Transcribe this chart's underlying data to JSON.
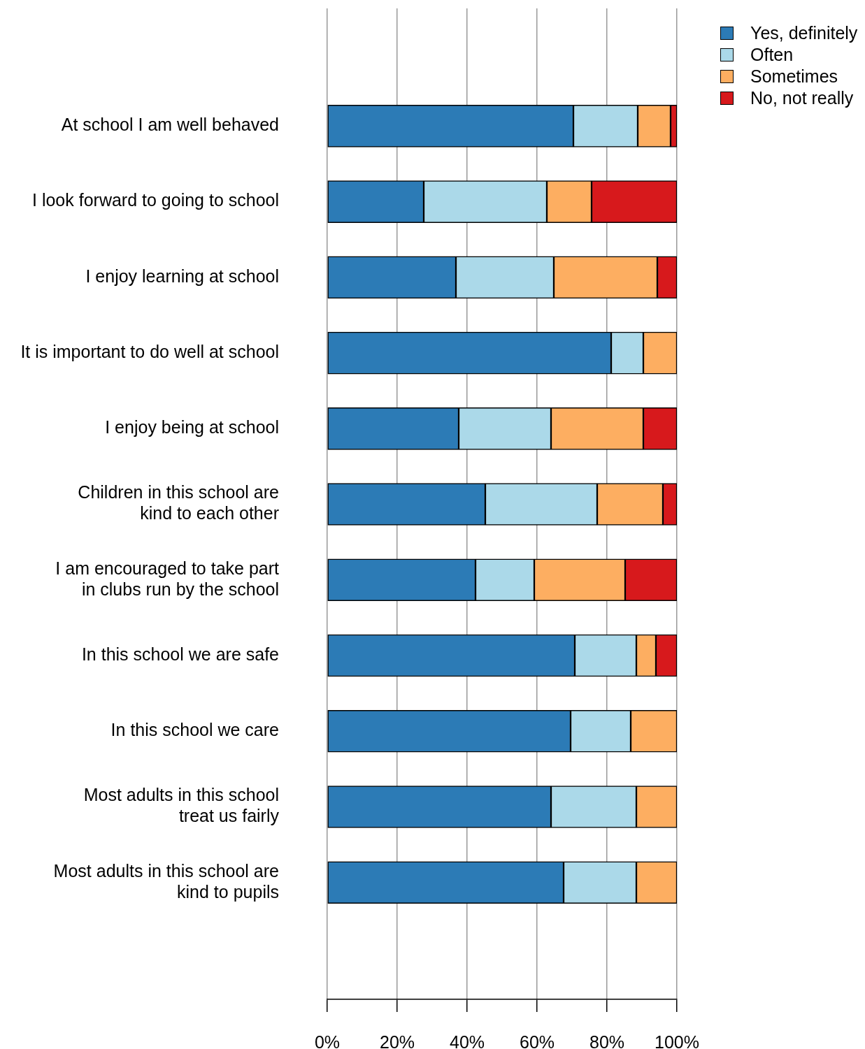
{
  "chart_data": {
    "type": "bar",
    "orientation": "horizontal",
    "stacked": true,
    "categories": [
      "At school I am well behaved",
      "I look forward to going to school",
      "I enjoy learning at school",
      "It is important to do well at school",
      "I enjoy being at school",
      "Children in this school are\nkind to each other",
      "I am encouraged to take part\nin clubs run by the school",
      "In this school we are safe",
      "In this school we care",
      "Most adults in this school\ntreat us fairly",
      "Most adults in this school are\nkind to pupils"
    ],
    "series": [
      {
        "name": "Yes, definitely",
        "color": "#2c7bb6",
        "values": [
          70.4,
          27.6,
          36.8,
          81.2,
          37.6,
          45.2,
          42.4,
          70.8,
          69.6,
          64,
          67.6
        ]
      },
      {
        "name": "Often",
        "color": "#abd9e9",
        "values": [
          18.4,
          35.2,
          28,
          9.2,
          26.4,
          32,
          16.8,
          17.6,
          17.2,
          24.4,
          20.8
        ]
      },
      {
        "name": "Sometimes",
        "color": "#fdae61",
        "values": [
          9.4,
          12.8,
          29.6,
          9.6,
          26.4,
          18.8,
          26,
          5.6,
          13.2,
          11.6,
          11.6
        ]
      },
      {
        "name": "No, not really",
        "color": "#d7191c",
        "values": [
          1.8,
          24.4,
          5.6,
          0,
          9.6,
          4,
          14.8,
          6,
          0,
          0,
          0
        ]
      }
    ],
    "xlim": [
      0,
      100
    ],
    "xticks": [
      {
        "value": 0,
        "label": "0%"
      },
      {
        "value": 20,
        "label": "20%"
      },
      {
        "value": 40,
        "label": "40%"
      },
      {
        "value": 60,
        "label": "60%"
      },
      {
        "value": 80,
        "label": "80%"
      },
      {
        "value": 100,
        "label": "100%"
      }
    ],
    "grid": "x",
    "legend": "top right"
  }
}
